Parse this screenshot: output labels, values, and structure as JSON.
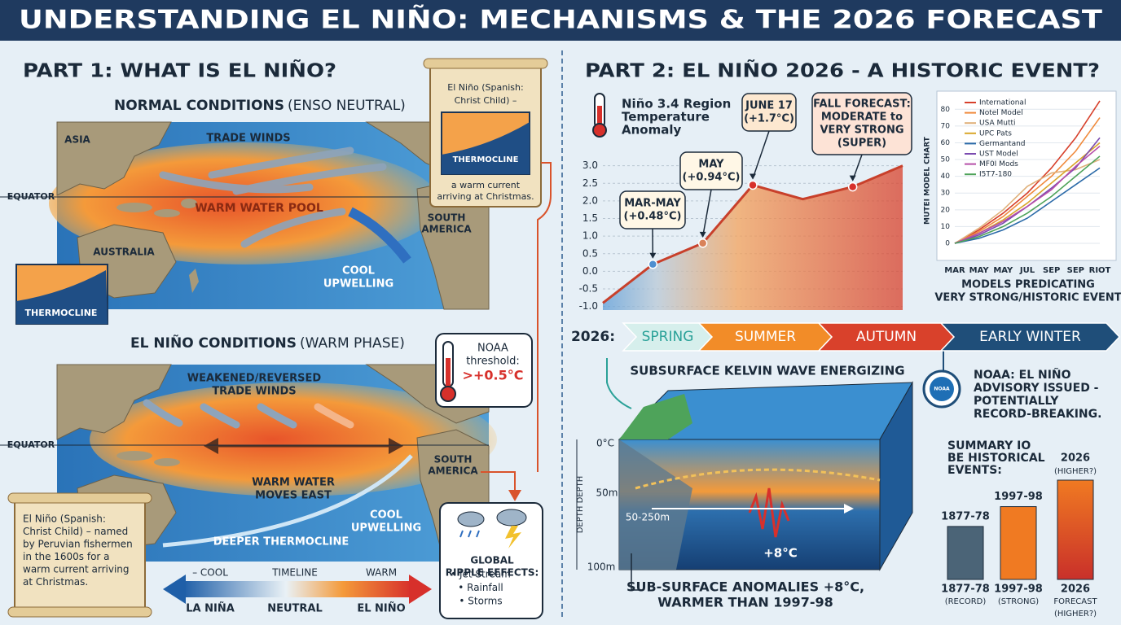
{
  "header": {
    "title": "UNDERSTANDING EL NIÑO: MECHANISMS & THE 2026 FORECAST"
  },
  "part1": {
    "title": "PART 1: WHAT IS EL NIÑO?",
    "normal": {
      "title": "NORMAL CONDITIONS",
      "subtitle": "(ENSO NEUTRAL)",
      "asia": "ASIA",
      "trade_winds": "TRADE WINDS",
      "equator": "EQUATOR",
      "warm_pool": "WARM WATER POOL",
      "australia": "AUSTRALIA",
      "south_america": [
        "SOUTH",
        "AMERICA"
      ],
      "upwelling": [
        "COOL",
        "UPWELLING"
      ],
      "thermocline": "THERMOCLINE"
    },
    "scroll_top": {
      "text": [
        "El Niño (Spanish:",
        "Christ Child) –"
      ],
      "inset": "THERMOCLINE",
      "caption": [
        "a warm current",
        "arriving at Christmas."
      ]
    },
    "elnino": {
      "title": "EL NIÑO CONDITIONS",
      "subtitle": "(WARM PHASE)",
      "trade_winds": [
        "WEAKENED/REVERSED",
        "TRADE WINDS"
      ],
      "equator": "EQUATOR",
      "warm_moves": [
        "WARM WATER",
        "MOVES EAST"
      ],
      "south_america": [
        "SOUTH",
        "AMERICA"
      ],
      "upwelling": [
        "COOL",
        "UPWELLING"
      ],
      "deeper": "DEEPER THERMOCLINE"
    },
    "noaa_threshold": {
      "label": [
        "NOAA",
        "threshold:"
      ],
      "value": ">+0.5°C"
    },
    "scroll_bottom": [
      "El Niño (Spanish:",
      "Christ Child) – named",
      "by Peruvian fishermen",
      "in the 1600s for a",
      "warm current arriving",
      "at Christmas."
    ],
    "scale": {
      "top": [
        "– COOL",
        "TIMELINE",
        "WARM"
      ],
      "bottom": [
        "LA NIÑA",
        "NEUTRAL",
        "EL NIÑO"
      ]
    },
    "ripple": {
      "title": [
        "GLOBAL",
        "RIPPLE EFFECTS:"
      ],
      "items": [
        "• Jet Stream",
        "• Rainfall",
        "• Storms"
      ]
    }
  },
  "part2": {
    "title": "PART 2: EL NIÑO 2026 - A HISTORIC EVENT?",
    "timeline": {
      "label": "2026:",
      "seasons": [
        "SPRING",
        "SUMMER",
        "AUTUMN",
        "EARLY WINTER"
      ]
    },
    "kelvin": {
      "title": "SUBSURFACE KELVIN WAVE ENERGIZING",
      "depths": [
        "0°C",
        "50m",
        "100m"
      ],
      "depth_label": "DEPTH DEPTH",
      "range": "50-250m",
      "anomaly": "+8°C",
      "caption": [
        "SUB-SURFACE ANOMALIES +8°C,",
        "WARMER THAN 1997-98"
      ]
    },
    "noaa": {
      "logo": "NOAA",
      "text": [
        "NOAA: EL NIÑO",
        "ADVISORY ISSUED -",
        "POTENTIALLY",
        "RECORD-BREAKING."
      ]
    }
  },
  "chart_data": [
    {
      "type": "area-line",
      "title": [
        "Niño 3.4 Region",
        "Temperature",
        "Anomaly"
      ],
      "categories": [
        null,
        null,
        null,
        null,
        null,
        null,
        null
      ],
      "values": [
        -0.9,
        0.2,
        0.8,
        2.45,
        2.05,
        2.4,
        3.0
      ],
      "ylim": [
        -1.1,
        3.2
      ],
      "yticks": [
        {
          "value": -1.0,
          "label": "-1.0"
        },
        -0.5,
        {
          "value": 0.0,
          "label": "0.0"
        },
        0.5,
        {
          "value": 1.0,
          "label": "1.0"
        },
        1.5,
        {
          "value": 2.0,
          "label": "2.0"
        },
        2.5,
        {
          "value": 3.0,
          "label": "3.0"
        }
      ],
      "grid": true,
      "annotations": [
        [
          "MAR-MAY",
          "(+0.48°C)"
        ],
        [
          "MAY",
          "(+0.94°C)"
        ],
        [
          "JUNE 17",
          "(+1.7°C)"
        ],
        [
          "FALL FORECAST:",
          "MODERATE to",
          "VERY STRONG",
          "(SUPER)"
        ]
      ]
    },
    {
      "type": "line",
      "ylabel": "MUTEI MODEL CHART",
      "categories": [
        "MAR",
        "MAY",
        "MAY",
        "JUL",
        "SEP",
        "SEP",
        "RIOT"
      ],
      "ylim": [
        0,
        85
      ],
      "yticks": [
        0,
        10,
        20,
        30,
        40,
        50,
        60,
        70,
        80
      ],
      "grid": true,
      "series": [
        {
          "name": "International",
          "color": "#d7402b",
          "values": [
            0,
            8,
            18,
            30,
            45,
            63,
            85
          ]
        },
        {
          "name": "Notel Model",
          "color": "#f08a3c",
          "values": [
            0,
            7,
            16,
            28,
            40,
            55,
            75
          ]
        },
        {
          "name": "USA Mutti",
          "color": "#e0b07a",
          "values": [
            0,
            9,
            20,
            34,
            42,
            44,
            50
          ]
        },
        {
          "name": "UPC Pats",
          "color": "#d9a62a",
          "values": [
            0,
            6,
            14,
            24,
            36,
            48,
            60
          ]
        },
        {
          "name": "Germantand",
          "color": "#2b6aa8",
          "values": [
            0,
            3,
            8,
            15,
            25,
            35,
            45
          ]
        },
        {
          "name": "UST Model",
          "color": "#7b4bb0",
          "values": [
            0,
            5,
            12,
            22,
            33,
            45,
            63
          ]
        },
        {
          "name": "MF0I Mods",
          "color": "#b64fa8",
          "values": [
            0,
            6,
            13,
            22,
            32,
            46,
            58
          ]
        },
        {
          "name": "I5T7-180",
          "color": "#4ea35a",
          "values": [
            0,
            4,
            10,
            18,
            28,
            40,
            52
          ]
        }
      ],
      "caption": [
        "MODELS PREDICATING",
        "VERY STRONG/HISTORIC EVENT"
      ]
    },
    {
      "type": "bar",
      "title": [
        "SUMMARY IO",
        "BE HISTORICAL",
        "EVENTS:"
      ],
      "categories": [
        "1877-78",
        "1997-98",
        "2026"
      ],
      "category_notes": [
        null,
        null,
        "(HIGHER?)"
      ],
      "x_labels": [
        [
          "1877-78",
          "(RECORD)"
        ],
        [
          "1997-98",
          "(STRONG)"
        ],
        [
          "2026",
          "FORECAST",
          "(HIGHER?)"
        ]
      ],
      "values": [
        1.6,
        2.2,
        3.0
      ],
      "ylim": [
        0,
        3.0
      ],
      "colors": [
        "#4b6477",
        "#f07a22",
        "#df4a2a"
      ]
    }
  ]
}
